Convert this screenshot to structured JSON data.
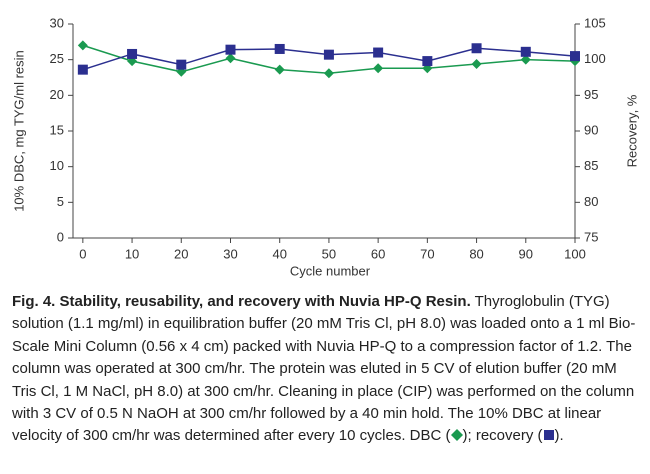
{
  "chart_data": {
    "type": "line",
    "xlabel": "Cycle number",
    "ylabel": "10% DBC, mg TYG/ml resin",
    "y2label": "Recovery, %",
    "x": [
      0,
      10,
      20,
      30,
      40,
      50,
      60,
      70,
      80,
      90,
      100
    ],
    "series": [
      {
        "name": "DBC",
        "color": "#1a9a50",
        "marker": "diamond",
        "values": [
          27,
          24.8,
          23.3,
          25.2,
          23.6,
          23.1,
          23.8,
          23.8,
          24.4,
          25.0,
          24.8
        ]
      },
      {
        "name": "recovery",
        "color": "#2b2f8f",
        "marker": "square",
        "axis": "y2",
        "values": [
          98.6,
          100.8,
          99.3,
          101.4,
          101.5,
          100.7,
          101.0,
          99.8,
          101.6,
          101.1,
          100.5
        ]
      }
    ],
    "xlim": [
      -2,
      100
    ],
    "xticks": [
      0,
      10,
      20,
      30,
      40,
      50,
      60,
      70,
      80,
      90,
      100
    ],
    "ylim": [
      0,
      30
    ],
    "yticks": [
      0,
      5,
      10,
      15,
      20,
      25,
      30
    ],
    "y2lim": [
      75,
      105
    ],
    "y2ticks": [
      75,
      80,
      85,
      90,
      95,
      100,
      105
    ],
    "grid": false
  },
  "caption": {
    "label": "Fig. 4. Stability, reusability, and recovery with Nuvia HP-Q Resin.",
    "segments": [
      " Thyroglobulin (TYG) solution (1.1 mg/ml) in equilibration buffer (20 mM Tris Cl, pH 8.0) was loaded onto a 1 ml Bio-Scale Mini Column (0.56 x 4 cm) packed with Nuvia HP-Q to a compression factor of 1.2. The column was operated at 300 cm/hr. The protein was eluted in 5 CV of elution buffer (20 mM Tris Cl, 1 M NaCl, pH 8.0) at 300 cm/hr. Cleaning in place (CIP) was performed on the column with 3 CV of 0.5 N NaOH at 300 cm/hr followed by a 40 min hold. The 10% DBC at linear velocity of 300 cm/hr was determined after every 10 cycles. DBC (",
      "); recovery (",
      ")."
    ]
  }
}
